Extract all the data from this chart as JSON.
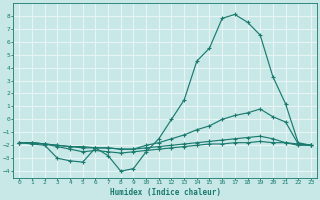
{
  "xlabel": "Humidex (Indice chaleur)",
  "bg_color": "#c8e8e8",
  "grid_color": "#e8f4f4",
  "line_color": "#1a7a6e",
  "xlim": [
    -0.5,
    23.5
  ],
  "ylim": [
    -4.5,
    9.0
  ],
  "yticks": [
    -4,
    -3,
    -2,
    -1,
    0,
    1,
    2,
    3,
    4,
    5,
    6,
    7,
    8
  ],
  "xticks": [
    0,
    1,
    2,
    3,
    4,
    5,
    6,
    7,
    8,
    9,
    10,
    11,
    12,
    13,
    14,
    15,
    16,
    17,
    18,
    19,
    20,
    21,
    22,
    23
  ],
  "lines": [
    {
      "x": [
        0,
        1,
        2,
        3,
        4,
        5,
        6,
        7,
        8,
        9,
        10,
        11,
        12,
        13,
        14,
        15,
        16,
        17,
        18,
        19,
        20,
        21,
        22,
        23
      ],
      "y": [
        -1.8,
        -1.9,
        -2.0,
        -3.0,
        -3.2,
        -3.3,
        -2.2,
        -2.8,
        -4.0,
        -3.8,
        -2.5,
        -1.5,
        0.0,
        1.5,
        4.5,
        5.5,
        7.8,
        8.1,
        7.5,
        6.5,
        3.3,
        1.2,
        -1.8,
        -2.0
      ]
    },
    {
      "x": [
        0,
        1,
        2,
        3,
        4,
        5,
        6,
        7,
        8,
        9,
        10,
        11,
        12,
        13,
        14,
        15,
        16,
        17,
        18,
        19,
        20,
        21,
        22,
        23
      ],
      "y": [
        -1.8,
        -1.8,
        -1.9,
        -2.0,
        -2.1,
        -2.2,
        -2.2,
        -2.2,
        -2.3,
        -2.3,
        -2.0,
        -1.8,
        -1.5,
        -1.2,
        -0.8,
        -0.5,
        0.0,
        0.3,
        0.5,
        0.8,
        0.2,
        -0.2,
        -1.9,
        -2.0
      ]
    },
    {
      "x": [
        0,
        1,
        2,
        3,
        4,
        5,
        6,
        7,
        8,
        9,
        10,
        11,
        12,
        13,
        14,
        15,
        16,
        17,
        18,
        19,
        20,
        21,
        22,
        23
      ],
      "y": [
        -1.8,
        -1.8,
        -1.9,
        -2.0,
        -2.1,
        -2.1,
        -2.2,
        -2.2,
        -2.3,
        -2.3,
        -2.2,
        -2.1,
        -2.0,
        -1.9,
        -1.8,
        -1.7,
        -1.6,
        -1.5,
        -1.4,
        -1.3,
        -1.5,
        -1.8,
        -2.0,
        -2.0
      ]
    },
    {
      "x": [
        0,
        1,
        2,
        3,
        4,
        5,
        6,
        7,
        8,
        9,
        10,
        11,
        12,
        13,
        14,
        15,
        16,
        17,
        18,
        19,
        20,
        21,
        22,
        23
      ],
      "y": [
        -1.8,
        -1.8,
        -1.9,
        -2.1,
        -2.3,
        -2.5,
        -2.4,
        -2.5,
        -2.6,
        -2.5,
        -2.4,
        -2.3,
        -2.2,
        -2.1,
        -2.0,
        -1.9,
        -1.9,
        -1.8,
        -1.8,
        -1.7,
        -1.8,
        -1.8,
        -1.9,
        -2.0
      ]
    }
  ]
}
